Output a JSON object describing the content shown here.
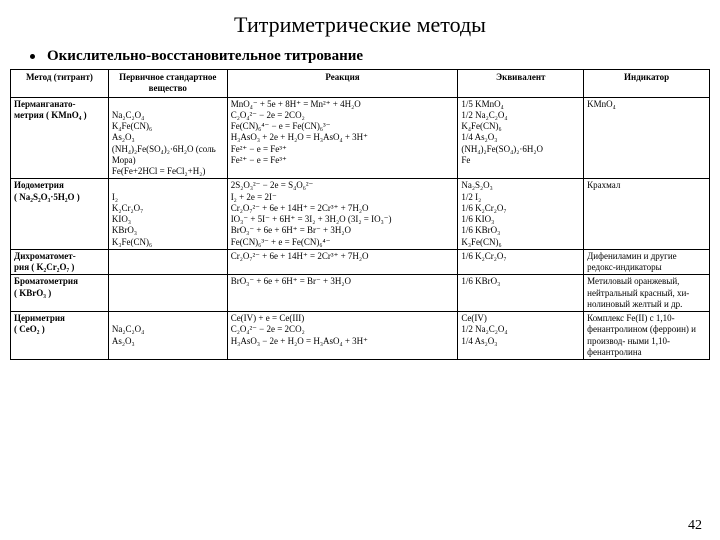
{
  "title": "Титриметрические методы",
  "subtitle": "Окислительно-восстановительное титрование",
  "page_number": "42",
  "headers": {
    "method": "Метод (титрант)",
    "primary": "Первичное стандартное вещество",
    "reaction": "Реакция",
    "equivalent": "Эквивалент",
    "indicator": "Индикатор"
  },
  "rows": [
    {
      "method": [
        "Перманганато-",
        "метрия ( KMnO₄ )"
      ],
      "primary": [
        "",
        "Na₂C₂O₄",
        "K₄Fe(CN)₆",
        "As₂O₃",
        "(NH₄)₂Fe(SO₄)₂·6H₂O (соль Мора)",
        "Fe(Fe+2HCl = FeCl₂+H₂)"
      ],
      "reaction": [
        "MnO₄⁻ + 5e + 8H⁺ = Mn²⁺ + 4H₂O",
        "C₂O₄²⁻ − 2e = 2CO₂",
        "Fe(CN)₆⁴⁻ − e = Fe(CN)₆³⁻",
        "H₃AsO₃ + 2e + H₂O = H₃AsO₄ + 3H⁺",
        "Fe²⁺ − e = Fe³⁺",
        "Fe²⁺ − e = Fe³⁺"
      ],
      "equivalent": [
        "1/5 KMnO₄",
        "1/2 Na₂C₂O₄",
        "K₄Fe(CN)₆",
        "1/4 As₂O₃",
        "(NH₄)₂Fe(SO₄)₂·6H₂O",
        "Fe"
      ],
      "indicator": [
        "KMnO₄"
      ]
    },
    {
      "method": [
        "Иодометрия",
        "( Na₂S₂O₃·5H₂O )"
      ],
      "primary": [
        "",
        "I₂",
        "K₂Cr₂O₇",
        "KIO₃",
        "KBrO₃",
        "K₃Fe(CN)₆"
      ],
      "reaction": [
        "2S₂O₃²⁻ − 2e = S₄O₆²⁻",
        "I₂ + 2e = 2I⁻",
        "Cr₂O₇²⁻ + 6e + 14H⁺ = 2Cr³⁺ + 7H₂O",
        "IO₃⁻ + 5I⁻ + 6H⁺ = 3I₂ + 3H₂O (3I₂ = IO₃⁻)",
        "BrO₃⁻ + 6e + 6H⁺ = Br⁻ + 3H₂O",
        "Fe(CN)₆³⁻ + e = Fe(CN)₆⁴⁻"
      ],
      "equivalent": [
        "Na₂S₂O₃",
        "1/2 I₂",
        "1/6 K₂Cr₂O₇",
        "1/6 KIO₃",
        "1/6 KBrO₃",
        "K₃Fe(CN)₆"
      ],
      "indicator": [
        "Крахмал"
      ]
    },
    {
      "method": [
        "Дихроматомет-",
        "рия ( K₂Cr₂O₇ )"
      ],
      "primary": [
        ""
      ],
      "reaction": [
        "Cr₂O₇²⁻ + 6e + 14H⁺ = 2Cr³⁺ + 7H₂O"
      ],
      "equivalent": [
        "1/6 K₂Cr₂O₇"
      ],
      "indicator": [
        "Дифениламин и другие редокс-индикаторы"
      ]
    },
    {
      "method": [
        "Броматометрия",
        "( KBrO₃ )"
      ],
      "primary": [
        ""
      ],
      "reaction": [
        "BrO₃⁻ + 6e + 6H⁺ = Br⁻ + 3H₂O"
      ],
      "equivalent": [
        "1/6 KBrO₃"
      ],
      "indicator": [
        "Метиловый оранжевый, нейтральный красный, хи- нолиновый желтый и др."
      ]
    },
    {
      "method": [
        "Цериметрия",
        "( CeO₂ )"
      ],
      "primary": [
        "",
        "Na₂C₂O₄",
        "As₂O₃"
      ],
      "reaction": [
        "Ce(IV) + e = Ce(III)",
        "C₂O₄²⁻ − 2e = 2CO₂",
        "H₃AsO₃ − 2e + H₂O = H₃AsO₄ + 3H⁺"
      ],
      "equivalent": [
        "Ce(IV)",
        "1/2 Na₂C₂O₄",
        "1/4 As₂O₃"
      ],
      "indicator": [
        "Комплекс Fe(II) с 1,10-фенантролином (ферроин) и производ- ными 1,10-фенантролина"
      ]
    }
  ]
}
